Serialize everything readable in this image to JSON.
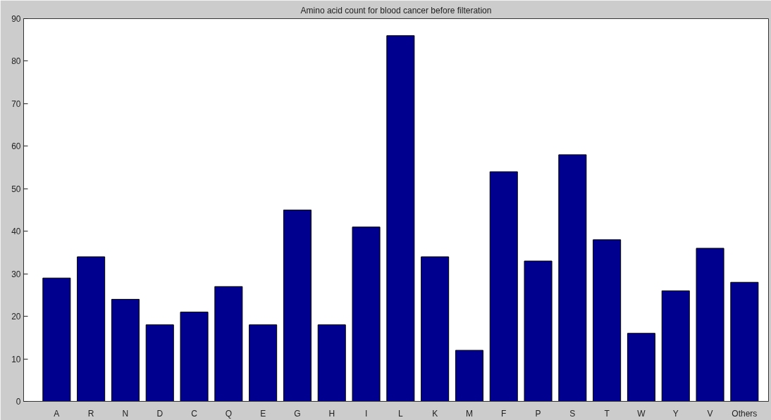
{
  "chart_data": {
    "type": "bar",
    "title": "Amino acid count for blood cancer before filteration",
    "categories": [
      "A",
      "R",
      "N",
      "D",
      "C",
      "Q",
      "E",
      "G",
      "H",
      "I",
      "L",
      "K",
      "M",
      "F",
      "P",
      "S",
      "T",
      "W",
      "Y",
      "V",
      "Others"
    ],
    "values": [
      29,
      34,
      24,
      18,
      21,
      27,
      18,
      45,
      18,
      41,
      86,
      34,
      12,
      54,
      33,
      58,
      38,
      16,
      26,
      36,
      28
    ],
    "color": "#00008f",
    "ylim": [
      0,
      90
    ],
    "yticks": [
      0,
      10,
      20,
      30,
      40,
      50,
      60,
      70,
      80,
      90
    ],
    "grid": false
  }
}
